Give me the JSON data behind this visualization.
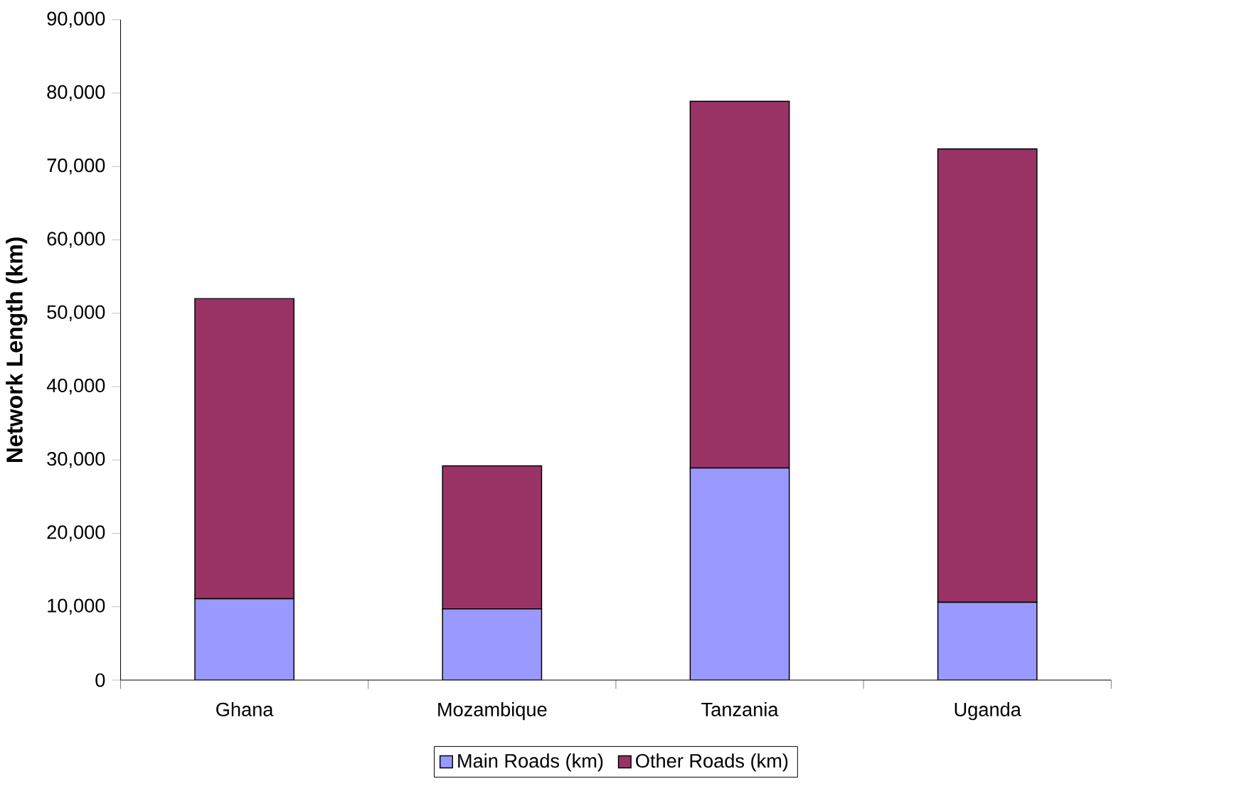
{
  "chart_data": {
    "type": "bar",
    "stacked": true,
    "ylabel": "Network Length (km)",
    "categories": [
      "Ghana",
      "Mozambique",
      "Tanzania",
      "Uganda"
    ],
    "series": [
      {
        "name": "Main Roads (km)",
        "color": "#9999ff",
        "values": [
          11100,
          9700,
          28900,
          10600
        ]
      },
      {
        "name": "Other Roads (km)",
        "color": "#993366",
        "values": [
          40900,
          19500,
          50000,
          61800
        ]
      }
    ],
    "ylim": [
      0,
      90000
    ],
    "yticks": [
      {
        "value": 0,
        "label": "0"
      },
      {
        "value": 10000,
        "label": "10,000"
      },
      {
        "value": 20000,
        "label": "20,000"
      },
      {
        "value": 30000,
        "label": "30,000"
      },
      {
        "value": 40000,
        "label": "40,000"
      },
      {
        "value": 50000,
        "label": "50,000"
      },
      {
        "value": 60000,
        "label": "60,000"
      },
      {
        "value": 70000,
        "label": "70,000"
      },
      {
        "value": 80000,
        "label": "80,000"
      },
      {
        "value": 90000,
        "label": "90,000"
      }
    ],
    "grid": false,
    "legend": "bottom"
  }
}
